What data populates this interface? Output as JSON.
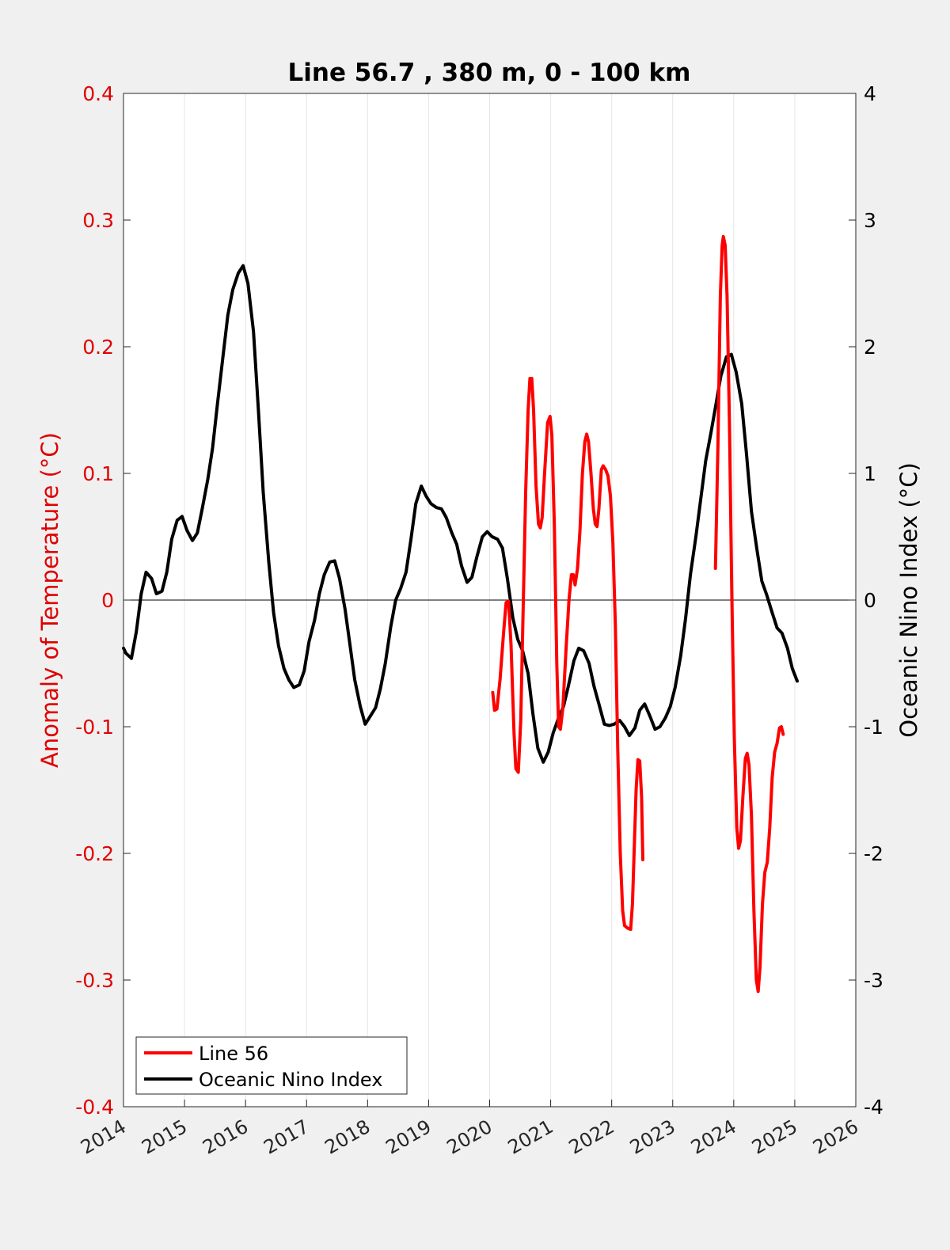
{
  "colors": {
    "figure_background": "#f0f0f0",
    "axes_background": "#ffffff",
    "left_axis": "#e00000",
    "right_axis": "#000000",
    "line56": "#ff0000",
    "oni": "#000000",
    "grid": "#e6e6e6"
  },
  "chart_data": {
    "type": "line",
    "title": "Line 56.7 , 380 m, 0 - 100 km",
    "xlabel": "",
    "ylabel_left": "Anomaly of Temperature (°C)",
    "ylabel_right": "Oceanic Nino Index (°C)",
    "xlim": [
      2014,
      2026
    ],
    "ylim_left": [
      -0.4,
      0.4
    ],
    "ylim_right": [
      -4,
      4
    ],
    "x_ticks": [
      "2014",
      "2015",
      "2016",
      "2017",
      "2018",
      "2019",
      "2020",
      "2021",
      "2022",
      "2023",
      "2024",
      "2025",
      "2026"
    ],
    "y_ticks_left": [
      "-0.4",
      "-0.3",
      "-0.2",
      "-0.1",
      "0",
      "0.1",
      "0.2",
      "0.3",
      "0.4"
    ],
    "y_ticks_right": [
      "-4",
      "-3",
      "-2",
      "-1",
      "0",
      "1",
      "2",
      "3",
      "4"
    ],
    "grid": "vertical only",
    "zero_line": true,
    "legend_location": "bottom-left",
    "series": [
      {
        "name": "Line 56",
        "axis": "left",
        "color": "#ff0000",
        "segments": [
          [
            [
              2020.05,
              -0.073
            ],
            [
              2020.08,
              -0.087
            ],
            [
              2020.12,
              -0.086
            ],
            [
              2020.17,
              -0.063
            ],
            [
              2020.23,
              -0.025
            ],
            [
              2020.27,
              -0.002
            ],
            [
              2020.31,
              -0.001
            ],
            [
              2020.35,
              -0.035
            ],
            [
              2020.4,
              -0.105
            ],
            [
              2020.43,
              -0.133
            ],
            [
              2020.47,
              -0.136
            ],
            [
              2020.51,
              -0.095
            ],
            [
              2020.55,
              -0.005
            ],
            [
              2020.59,
              0.085
            ],
            [
              2020.63,
              0.15
            ],
            [
              2020.66,
              0.175
            ],
            [
              2020.69,
              0.175
            ],
            [
              2020.72,
              0.15
            ],
            [
              2020.76,
              0.09
            ],
            [
              2020.8,
              0.06
            ],
            [
              2020.83,
              0.057
            ],
            [
              2020.86,
              0.065
            ],
            [
              2020.9,
              0.1
            ],
            [
              2020.95,
              0.14
            ],
            [
              2020.99,
              0.145
            ],
            [
              2021.02,
              0.13
            ],
            [
              2021.06,
              0.06
            ],
            [
              2021.1,
              -0.05
            ],
            [
              2021.13,
              -0.1
            ],
            [
              2021.16,
              -0.102
            ],
            [
              2021.2,
              -0.085
            ],
            [
              2021.25,
              -0.04
            ],
            [
              2021.3,
              0.0
            ],
            [
              2021.34,
              0.02
            ],
            [
              2021.37,
              0.02
            ],
            [
              2021.4,
              0.012
            ],
            [
              2021.44,
              0.025
            ],
            [
              2021.48,
              0.055
            ],
            [
              2021.52,
              0.1
            ],
            [
              2021.56,
              0.125
            ],
            [
              2021.59,
              0.131
            ],
            [
              2021.62,
              0.125
            ],
            [
              2021.66,
              0.1
            ],
            [
              2021.7,
              0.072
            ],
            [
              2021.73,
              0.06
            ],
            [
              2021.76,
              0.058
            ],
            [
              2021.79,
              0.072
            ],
            [
              2021.83,
              0.103
            ],
            [
              2021.86,
              0.106
            ],
            [
              2021.9,
              0.103
            ],
            [
              2021.94,
              0.098
            ],
            [
              2021.98,
              0.082
            ],
            [
              2022.02,
              0.045
            ],
            [
              2022.06,
              -0.02
            ],
            [
              2022.1,
              -0.12
            ],
            [
              2022.14,
              -0.2
            ],
            [
              2022.18,
              -0.245
            ],
            [
              2022.21,
              -0.257
            ],
            [
              2022.26,
              -0.259
            ],
            [
              2022.31,
              -0.26
            ],
            [
              2022.34,
              -0.24
            ],
            [
              2022.37,
              -0.195
            ],
            [
              2022.4,
              -0.15
            ],
            [
              2022.43,
              -0.126
            ],
            [
              2022.46,
              -0.127
            ],
            [
              2022.49,
              -0.155
            ],
            [
              2022.51,
              -0.205
            ]
          ],
          [
            [
              2023.7,
              0.025
            ],
            [
              2023.74,
              0.12
            ],
            [
              2023.78,
              0.24
            ],
            [
              2023.81,
              0.28
            ],
            [
              2023.83,
              0.287
            ],
            [
              2023.86,
              0.28
            ],
            [
              2023.89,
              0.24
            ],
            [
              2023.93,
              0.14
            ],
            [
              2023.97,
              0.0
            ],
            [
              2024.01,
              -0.11
            ],
            [
              2024.05,
              -0.18
            ],
            [
              2024.08,
              -0.196
            ],
            [
              2024.11,
              -0.19
            ],
            [
              2024.15,
              -0.155
            ],
            [
              2024.19,
              -0.125
            ],
            [
              2024.22,
              -0.121
            ],
            [
              2024.25,
              -0.13
            ],
            [
              2024.29,
              -0.17
            ],
            [
              2024.33,
              -0.245
            ],
            [
              2024.37,
              -0.3
            ],
            [
              2024.4,
              -0.309
            ],
            [
              2024.43,
              -0.29
            ],
            [
              2024.47,
              -0.24
            ],
            [
              2024.51,
              -0.215
            ],
            [
              2024.55,
              -0.207
            ],
            [
              2024.59,
              -0.18
            ],
            [
              2024.63,
              -0.14
            ],
            [
              2024.67,
              -0.12
            ],
            [
              2024.71,
              -0.113
            ],
            [
              2024.75,
              -0.101
            ],
            [
              2024.78,
              -0.1
            ],
            [
              2024.81,
              -0.106
            ]
          ]
        ]
      },
      {
        "name": "Oceanic Nino Index",
        "axis": "right",
        "color": "#000000",
        "points": [
          [
            2014.0,
            -0.38
          ],
          [
            2014.04,
            -0.42
          ],
          [
            2014.13,
            -0.46
          ],
          [
            2014.21,
            -0.25
          ],
          [
            2014.29,
            0.05
          ],
          [
            2014.37,
            0.22
          ],
          [
            2014.46,
            0.17
          ],
          [
            2014.54,
            0.05
          ],
          [
            2014.63,
            0.07
          ],
          [
            2014.71,
            0.22
          ],
          [
            2014.79,
            0.48
          ],
          [
            2014.88,
            0.63
          ],
          [
            2014.96,
            0.66
          ],
          [
            2015.04,
            0.55
          ],
          [
            2015.13,
            0.47
          ],
          [
            2015.21,
            0.53
          ],
          [
            2015.29,
            0.72
          ],
          [
            2015.38,
            0.95
          ],
          [
            2015.46,
            1.2
          ],
          [
            2015.54,
            1.55
          ],
          [
            2015.63,
            1.92
          ],
          [
            2015.71,
            2.25
          ],
          [
            2015.79,
            2.45
          ],
          [
            2015.88,
            2.58
          ],
          [
            2015.96,
            2.64
          ],
          [
            2016.04,
            2.5
          ],
          [
            2016.13,
            2.12
          ],
          [
            2016.21,
            1.5
          ],
          [
            2016.29,
            0.85
          ],
          [
            2016.38,
            0.3
          ],
          [
            2016.46,
            -0.1
          ],
          [
            2016.54,
            -0.36
          ],
          [
            2016.63,
            -0.54
          ],
          [
            2016.71,
            -0.63
          ],
          [
            2016.79,
            -0.69
          ],
          [
            2016.88,
            -0.67
          ],
          [
            2016.96,
            -0.56
          ],
          [
            2017.04,
            -0.33
          ],
          [
            2017.13,
            -0.16
          ],
          [
            2017.21,
            0.05
          ],
          [
            2017.29,
            0.2
          ],
          [
            2017.38,
            0.3
          ],
          [
            2017.46,
            0.31
          ],
          [
            2017.54,
            0.17
          ],
          [
            2017.63,
            -0.07
          ],
          [
            2017.71,
            -0.35
          ],
          [
            2017.79,
            -0.63
          ],
          [
            2017.88,
            -0.84
          ],
          [
            2017.96,
            -0.98
          ],
          [
            2018.04,
            -0.92
          ],
          [
            2018.13,
            -0.85
          ],
          [
            2018.21,
            -0.7
          ],
          [
            2018.29,
            -0.5
          ],
          [
            2018.38,
            -0.21
          ],
          [
            2018.46,
            0.0
          ],
          [
            2018.54,
            0.09
          ],
          [
            2018.63,
            0.22
          ],
          [
            2018.71,
            0.48
          ],
          [
            2018.79,
            0.76
          ],
          [
            2018.88,
            0.9
          ],
          [
            2018.96,
            0.82
          ],
          [
            2019.04,
            0.76
          ],
          [
            2019.13,
            0.73
          ],
          [
            2019.21,
            0.72
          ],
          [
            2019.29,
            0.65
          ],
          [
            2019.38,
            0.53
          ],
          [
            2019.46,
            0.44
          ],
          [
            2019.54,
            0.27
          ],
          [
            2019.63,
            0.14
          ],
          [
            2019.71,
            0.18
          ],
          [
            2019.79,
            0.34
          ],
          [
            2019.88,
            0.5
          ],
          [
            2019.96,
            0.54
          ],
          [
            2020.04,
            0.5
          ],
          [
            2020.13,
            0.48
          ],
          [
            2020.21,
            0.41
          ],
          [
            2020.29,
            0.17
          ],
          [
            2020.38,
            -0.14
          ],
          [
            2020.46,
            -0.31
          ],
          [
            2020.54,
            -0.4
          ],
          [
            2020.63,
            -0.58
          ],
          [
            2020.71,
            -0.9
          ],
          [
            2020.79,
            -1.17
          ],
          [
            2020.88,
            -1.28
          ],
          [
            2020.96,
            -1.2
          ],
          [
            2021.04,
            -1.05
          ],
          [
            2021.13,
            -0.93
          ],
          [
            2021.21,
            -0.84
          ],
          [
            2021.29,
            -0.68
          ],
          [
            2021.38,
            -0.48
          ],
          [
            2021.46,
            -0.38
          ],
          [
            2021.54,
            -0.4
          ],
          [
            2021.63,
            -0.5
          ],
          [
            2021.71,
            -0.68
          ],
          [
            2021.79,
            -0.82
          ],
          [
            2021.88,
            -0.98
          ],
          [
            2021.96,
            -0.99
          ],
          [
            2022.04,
            -0.98
          ],
          [
            2022.13,
            -0.95
          ],
          [
            2022.21,
            -1.0
          ],
          [
            2022.29,
            -1.07
          ],
          [
            2022.38,
            -1.01
          ],
          [
            2022.46,
            -0.87
          ],
          [
            2022.54,
            -0.82
          ],
          [
            2022.63,
            -0.92
          ],
          [
            2022.71,
            -1.02
          ],
          [
            2022.79,
            -1.0
          ],
          [
            2022.88,
            -0.93
          ],
          [
            2022.96,
            -0.84
          ],
          [
            2023.04,
            -0.69
          ],
          [
            2023.13,
            -0.44
          ],
          [
            2023.21,
            -0.15
          ],
          [
            2023.29,
            0.2
          ],
          [
            2023.38,
            0.5
          ],
          [
            2023.46,
            0.8
          ],
          [
            2023.54,
            1.1
          ],
          [
            2023.63,
            1.33
          ],
          [
            2023.71,
            1.55
          ],
          [
            2023.79,
            1.77
          ],
          [
            2023.88,
            1.92
          ],
          [
            2023.96,
            1.94
          ],
          [
            2024.04,
            1.8
          ],
          [
            2024.13,
            1.55
          ],
          [
            2024.21,
            1.15
          ],
          [
            2024.29,
            0.7
          ],
          [
            2024.38,
            0.4
          ],
          [
            2024.46,
            0.15
          ],
          [
            2024.54,
            0.04
          ],
          [
            2024.63,
            -0.1
          ],
          [
            2024.71,
            -0.22
          ],
          [
            2024.79,
            -0.26
          ],
          [
            2024.88,
            -0.38
          ],
          [
            2024.96,
            -0.54
          ],
          [
            2025.04,
            -0.64
          ]
        ]
      }
    ]
  }
}
